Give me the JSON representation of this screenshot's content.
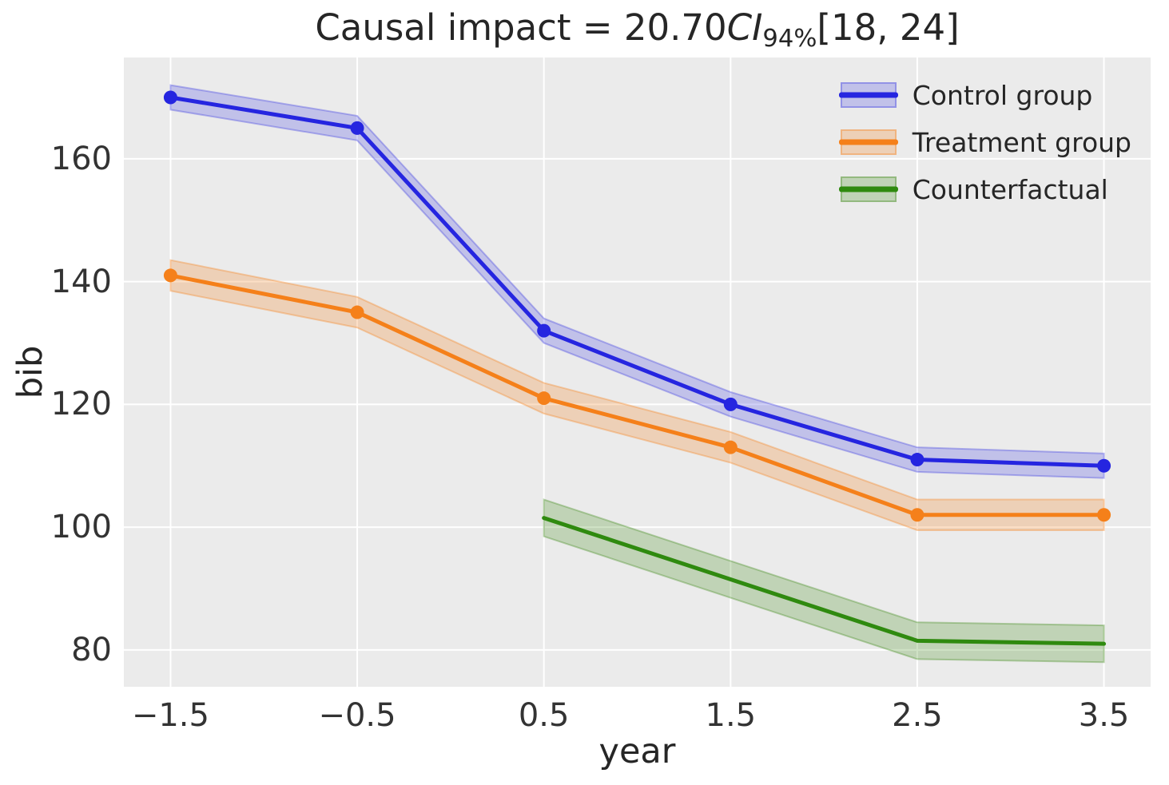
{
  "title": {
    "prefix": "Causal impact = 20.70",
    "ci": "CI",
    "ci_sub": "94%",
    "interval": "[18, 24]"
  },
  "chart_data": {
    "type": "line",
    "title": "Causal impact = 20.70 CI_94% [18, 24]",
    "xlabel": "year",
    "ylabel": "bib",
    "xlim": [
      -1.75,
      3.75
    ],
    "ylim": [
      74,
      176.5
    ],
    "x_ticks": [
      -1.5,
      -0.5,
      0.5,
      1.5,
      2.5,
      3.5
    ],
    "y_ticks": [
      80,
      100,
      120,
      140,
      160
    ],
    "grid": true,
    "plot_background": "#ebebeb",
    "grid_color": "#ffffff",
    "legend_position": "upper-right",
    "series": [
      {
        "name": "Control group",
        "color": "#2525e0",
        "band_fill": "rgba(60,60,225,0.24)",
        "band_edge": "rgba(60,60,225,0.35)",
        "marker": "circle",
        "x": [
          -1.5,
          -0.5,
          0.5,
          1.5,
          2.5,
          3.5
        ],
        "y": [
          170,
          165,
          132,
          120,
          111,
          110
        ],
        "ci_delta": 2
      },
      {
        "name": "Treatment group",
        "color": "#f5801a",
        "band_fill": "rgba(245,128,26,0.25)",
        "band_edge": "rgba(245,128,26,0.35)",
        "marker": "circle",
        "x": [
          -1.5,
          -0.5,
          0.5,
          1.5,
          2.5,
          3.5
        ],
        "y": [
          141,
          135,
          121,
          113,
          102,
          102
        ],
        "ci_delta": 2.5
      },
      {
        "name": "Counterfactual",
        "color": "#2f8a0f",
        "band_fill": "rgba(63,138,25,0.25)",
        "band_edge": "rgba(63,138,25,0.35)",
        "marker": "none",
        "x": [
          0.5,
          1.5,
          2.5,
          3.5
        ],
        "y": [
          101.5,
          91.5,
          81.5,
          81
        ],
        "ci_delta": 3
      }
    ]
  }
}
